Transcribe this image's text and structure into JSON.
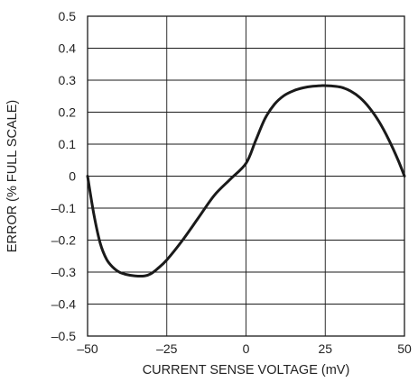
{
  "chart_data": {
    "type": "line",
    "title": "",
    "xlabel": "CURRENT SENSE VOLTAGE (mV)",
    "ylabel": "ERROR (% FULL SCALE)",
    "xlim": [
      -50,
      50
    ],
    "ylim": [
      -0.5,
      0.5
    ],
    "grid": true,
    "legend": "none",
    "x_ticks": [
      -50,
      -25,
      0,
      25,
      50
    ],
    "x_tick_labels": [
      "–50",
      "–25",
      "0",
      "25",
      "50"
    ],
    "y_ticks": [
      0.5,
      0.4,
      0.3,
      0.2,
      0.1,
      0,
      -0.1,
      -0.2,
      -0.3,
      -0.4,
      -0.5
    ],
    "y_tick_labels": [
      "0.5",
      "0.4",
      "0.3",
      "0.2",
      "0.1",
      "0",
      "–0.1",
      "–0.2",
      "–0.3",
      "–0.4",
      "–0.5"
    ],
    "series": [
      {
        "color": "#1a1a1a",
        "x": [
          -50,
          -48,
          -46,
          -44,
          -42,
          -40,
          -38,
          -35,
          -32,
          -30,
          -28,
          -25,
          -20,
          -15,
          -10,
          -5,
          0,
          3,
          6,
          9,
          12,
          15,
          18,
          21,
          24,
          25,
          27,
          30,
          33,
          36,
          39,
          42,
          45,
          48,
          50
        ],
        "y": [
          0,
          -0.12,
          -0.21,
          -0.26,
          -0.285,
          -0.3,
          -0.307,
          -0.312,
          -0.312,
          -0.305,
          -0.29,
          -0.262,
          -0.2,
          -0.13,
          -0.06,
          -0.01,
          0.04,
          0.11,
          0.18,
          0.225,
          0.252,
          0.267,
          0.276,
          0.281,
          0.283,
          0.283,
          0.282,
          0.278,
          0.266,
          0.245,
          0.213,
          0.17,
          0.115,
          0.05,
          0
        ]
      }
    ]
  }
}
